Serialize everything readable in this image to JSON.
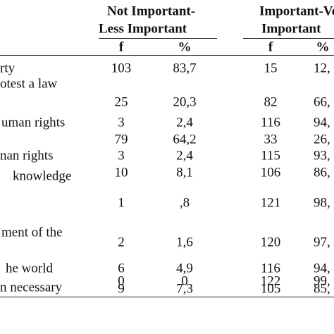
{
  "table": {
    "groups": [
      [
        "Not Important-",
        "Less Important"
      ],
      [
        "Important-Ve",
        "Important"
      ]
    ],
    "subheaders": [
      "f",
      "%",
      "f",
      "%"
    ],
    "rows": [
      {
        "label": "rty",
        "cells": [
          "103",
          "83,7",
          "15",
          "12,"
        ]
      },
      {
        "label": "otest a law",
        "cells": [
          "25",
          "20,3",
          "82",
          "66,"
        ]
      },
      {
        "label": "uman rights",
        "cells": [
          "3",
          "2,4",
          "116",
          "94,"
        ]
      },
      {
        "label": null,
        "cells": [
          "79",
          "64,2",
          "33",
          "26,"
        ]
      },
      {
        "label": "nan rights",
        "cells": [
          "3",
          "2,4",
          "115",
          "93,"
        ]
      },
      {
        "label": null,
        "cells": [
          "10",
          "8,1",
          "106",
          "86,"
        ]
      },
      {
        "label": "knowledge",
        "cells": [
          "1",
          ",8",
          "121",
          "98,"
        ]
      },
      {
        "label": "ment of the",
        "cells": [
          "2",
          "1,6",
          "120",
          "97,"
        ]
      },
      {
        "label": "he world",
        "cells": [
          "6",
          "4,9",
          "116",
          "94,"
        ]
      },
      {
        "label": null,
        "cells": [
          "0",
          "0",
          "122",
          "99,"
        ]
      },
      {
        "label": "n necessary",
        "cells": [
          "9",
          "7,3",
          "105",
          "85,"
        ]
      }
    ]
  }
}
